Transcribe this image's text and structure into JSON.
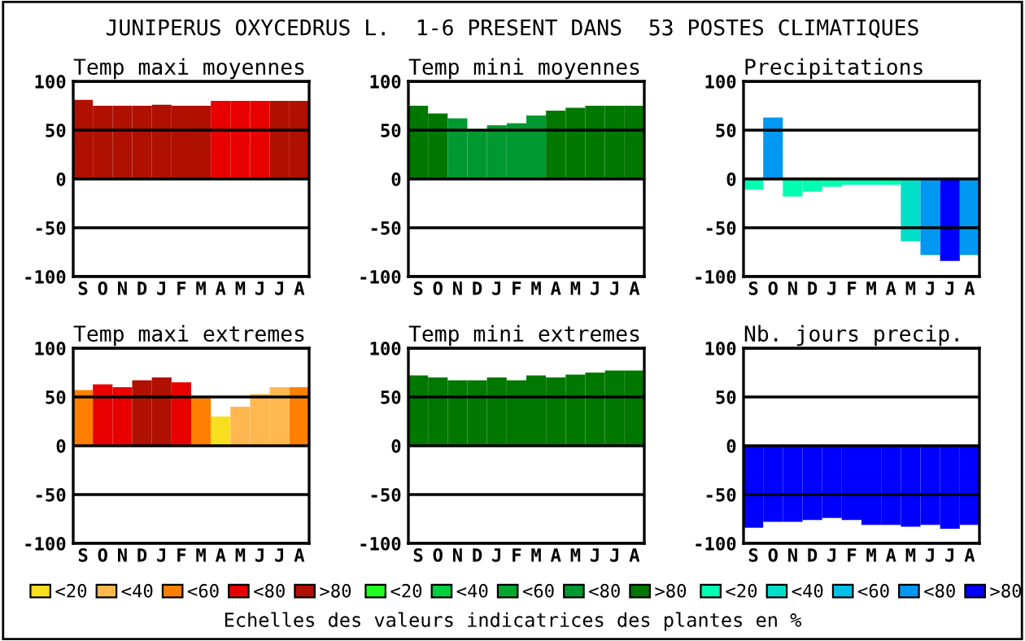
{
  "chart_data": [
    {
      "type": "bar",
      "title": "Temp maxi moyennes",
      "categories": [
        "S",
        "O",
        "N",
        "D",
        "J",
        "F",
        "M",
        "A",
        "M",
        "J",
        "J",
        "A"
      ],
      "values": [
        81,
        75,
        75,
        75,
        76,
        75,
        75,
        80,
        80,
        80,
        80,
        80
      ],
      "colors": [
        "#b01000",
        "#b01000",
        "#b01000",
        "#b01000",
        "#b01000",
        "#b01000",
        "#b01000",
        "#e80000",
        "#e80000",
        "#e80000",
        "#b01000",
        "#b01000"
      ],
      "ylim": [
        -100,
        100
      ],
      "yticks": [
        -100,
        -50,
        0,
        50,
        100
      ],
      "grid": "y"
    },
    {
      "type": "bar",
      "title": "Temp mini moyennes",
      "categories": [
        "S",
        "O",
        "N",
        "D",
        "J",
        "F",
        "M",
        "A",
        "M",
        "J",
        "J",
        "A"
      ],
      "values": [
        75,
        67,
        62,
        49,
        55,
        57,
        65,
        70,
        73,
        75,
        75,
        75
      ],
      "colors": [
        "#007800",
        "#007800",
        "#009830",
        "#009830",
        "#009830",
        "#009830",
        "#009830",
        "#007800",
        "#007800",
        "#007800",
        "#007800",
        "#007800"
      ],
      "ylim": [
        -100,
        100
      ],
      "yticks": [
        -100,
        -50,
        0,
        50,
        100
      ],
      "grid": "y"
    },
    {
      "type": "bar",
      "title": "Precipitations",
      "categories": [
        "S",
        "O",
        "N",
        "D",
        "J",
        "F",
        "M",
        "A",
        "M",
        "J",
        "J",
        "A"
      ],
      "values": [
        -11,
        63,
        -18,
        -13,
        -8,
        -6,
        -6,
        -6,
        -64,
        -78,
        -84,
        -78
      ],
      "colors": [
        "#00ffb0",
        "#0098f0",
        "#00ffb0",
        "#00ffb0",
        "#00ffb0",
        "#00ffb0",
        "#00ffb0",
        "#00ffb0",
        "#00e0c8",
        "#0098f0",
        "#0000ff",
        "#0098f0"
      ],
      "ylim": [
        -100,
        100
      ],
      "yticks": [
        -100,
        -50,
        0,
        50,
        100
      ],
      "grid": "y"
    },
    {
      "type": "bar",
      "title": "Temp maxi extremes",
      "categories": [
        "S",
        "O",
        "N",
        "D",
        "J",
        "F",
        "M",
        "A",
        "M",
        "J",
        "J",
        "A"
      ],
      "series": [
        {
          "name": "<20",
          "color": "#f8e020",
          "values": [
            null,
            null,
            null,
            null,
            null,
            null,
            null,
            30,
            null,
            null,
            null,
            null
          ]
        },
        {
          "name": "<40",
          "color": "#ffb850",
          "values": [
            null,
            null,
            null,
            null,
            null,
            null,
            null,
            null,
            40,
            53,
            60,
            null
          ]
        },
        {
          "name": "<60",
          "color": "#ff8000",
          "values": [
            57,
            null,
            null,
            null,
            null,
            null,
            49,
            null,
            null,
            null,
            null,
            60
          ]
        },
        {
          "name": "<80",
          "color": "#e80000",
          "values": [
            null,
            63,
            60,
            null,
            null,
            65,
            null,
            null,
            null,
            null,
            null,
            null
          ]
        },
        {
          "name": ">80",
          "color": "#b01000",
          "values": [
            null,
            null,
            null,
            67,
            70,
            null,
            null,
            null,
            null,
            null,
            null,
            null
          ]
        }
      ],
      "ylim": [
        -100,
        100
      ],
      "yticks": [
        -100,
        -50,
        0,
        50,
        100
      ],
      "grid": "y",
      "legend": "bottom"
    },
    {
      "type": "bar",
      "title": "Temp mini extremes",
      "categories": [
        "S",
        "O",
        "N",
        "D",
        "J",
        "F",
        "M",
        "A",
        "M",
        "J",
        "J",
        "A"
      ],
      "series": [
        {
          "name": "<20",
          "color": "#20ff20",
          "values": [
            null,
            null,
            null,
            null,
            null,
            null,
            null,
            null,
            null,
            null,
            null,
            null
          ]
        },
        {
          "name": "<40",
          "color": "#00d040",
          "values": [
            null,
            null,
            null,
            null,
            null,
            null,
            null,
            null,
            null,
            null,
            null,
            null
          ]
        },
        {
          "name": "<60",
          "color": "#00a830",
          "values": [
            null,
            null,
            null,
            null,
            null,
            null,
            null,
            null,
            null,
            null,
            null,
            null
          ]
        },
        {
          "name": "<80",
          "color": "#009830",
          "values": [
            null,
            null,
            null,
            null,
            null,
            null,
            null,
            null,
            null,
            null,
            null,
            null
          ]
        },
        {
          "name": ">80",
          "color": "#007800",
          "values": [
            72,
            70,
            67,
            67,
            70,
            67,
            72,
            70,
            73,
            75,
            77,
            77
          ]
        }
      ],
      "ylim": [
        -100,
        100
      ],
      "yticks": [
        -100,
        -50,
        0,
        50,
        100
      ],
      "grid": "y",
      "legend": "bottom"
    },
    {
      "type": "bar",
      "title": "Nb. jours precip.",
      "categories": [
        "S",
        "O",
        "N",
        "D",
        "J",
        "F",
        "M",
        "A",
        "M",
        "J",
        "J",
        "A"
      ],
      "series": [
        {
          "name": "<20",
          "color": "#00ffb0",
          "values": [
            null,
            null,
            null,
            null,
            null,
            null,
            null,
            null,
            null,
            null,
            null,
            null
          ]
        },
        {
          "name": "<40",
          "color": "#00e0c8",
          "values": [
            null,
            null,
            null,
            null,
            null,
            null,
            null,
            null,
            null,
            null,
            null,
            null
          ]
        },
        {
          "name": "<60",
          "color": "#00c0e8",
          "values": [
            null,
            null,
            null,
            null,
            null,
            null,
            null,
            null,
            null,
            null,
            null,
            null
          ]
        },
        {
          "name": "<80",
          "color": "#0098f0",
          "values": [
            null,
            null,
            null,
            null,
            null,
            null,
            null,
            null,
            null,
            null,
            null,
            null
          ]
        },
        {
          "name": ">80",
          "color": "#0000ff",
          "values": [
            -84,
            -78,
            -78,
            -76,
            -74,
            -76,
            -81,
            -81,
            -83,
            -81,
            -85,
            -81
          ]
        }
      ],
      "ylim": [
        -100,
        100
      ],
      "yticks": [
        -100,
        -50,
        0,
        50,
        100
      ],
      "grid": "y",
      "legend": "bottom"
    },
    {
      "type": "other",
      "title": "JUNIPERUS OXYCEDRUS L.  1-6 PRESENT DANS  53 POSTES CLIMATIQUES",
      "annotations": [
        "Echelles des valeurs indicatrices des plantes en %"
      ]
    }
  ]
}
